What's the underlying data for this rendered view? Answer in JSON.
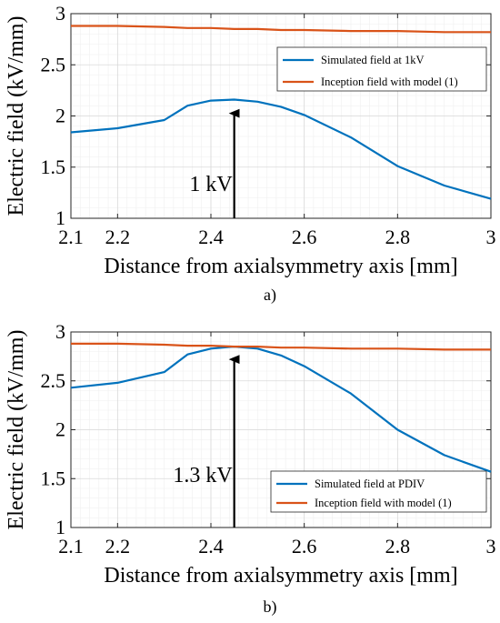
{
  "chart_data": [
    {
      "type": "line",
      "panel_label": "a)",
      "xlabel": "Distance from axialsymmetry axis [mm]",
      "ylabel": "Electric field (kV/mm)",
      "xlim": [
        2.1,
        3.0
      ],
      "ylim": [
        1,
        3
      ],
      "xticks": [
        2.1,
        2.2,
        2.4,
        2.6,
        2.8,
        3.0
      ],
      "xtick_labels": [
        "2.1",
        "2.2",
        "2.4",
        "2.6",
        "2.8",
        "3"
      ],
      "yticks": [
        1,
        1.5,
        2,
        2.5,
        3
      ],
      "ytick_labels": [
        "1",
        "1.5",
        "2",
        "2.5",
        "3"
      ],
      "grid": true,
      "legend_position": "top-right",
      "annotation": {
        "text": "1 kV",
        "arrow_x": 2.45,
        "arrow_y_from": 1.0,
        "arrow_y_to": 2.15
      },
      "series": [
        {
          "name": "Simulated field at 1kV",
          "color": "#0072BD",
          "x": [
            2.1,
            2.2,
            2.3,
            2.35,
            2.4,
            2.45,
            2.5,
            2.55,
            2.6,
            2.7,
            2.8,
            2.9,
            3.0
          ],
          "y": [
            1.84,
            1.88,
            1.96,
            2.1,
            2.15,
            2.16,
            2.14,
            2.09,
            2.01,
            1.79,
            1.51,
            1.32,
            1.19
          ]
        },
        {
          "name": "Inception field with model (1)",
          "color": "#D95319",
          "x": [
            2.1,
            2.2,
            2.3,
            2.35,
            2.4,
            2.45,
            2.5,
            2.55,
            2.6,
            2.7,
            2.8,
            2.9,
            3.0
          ],
          "y": [
            2.88,
            2.88,
            2.87,
            2.86,
            2.86,
            2.85,
            2.85,
            2.84,
            2.84,
            2.83,
            2.83,
            2.82,
            2.82
          ]
        }
      ]
    },
    {
      "type": "line",
      "panel_label": "b)",
      "xlabel": "Distance from axialsymmetry axis [mm]",
      "ylabel": "Electric field (kV/mm)",
      "xlim": [
        2.1,
        3.0
      ],
      "ylim": [
        1,
        3
      ],
      "xticks": [
        2.1,
        2.2,
        2.4,
        2.6,
        2.8,
        3.0
      ],
      "xtick_labels": [
        "2.1",
        "2.2",
        "2.4",
        "2.6",
        "2.8",
        "3"
      ],
      "yticks": [
        1,
        1.5,
        2,
        2.5,
        3
      ],
      "ytick_labels": [
        "1",
        "1.5",
        "2",
        "2.5",
        "3"
      ],
      "grid": true,
      "legend_position": "bottom-right",
      "annotation": {
        "text": "1.3 kV",
        "arrow_x": 2.45,
        "arrow_y_from": 1.0,
        "arrow_y_to": 2.85
      },
      "series": [
        {
          "name": "Simulated field at PDIV",
          "color": "#0072BD",
          "x": [
            2.1,
            2.2,
            2.3,
            2.35,
            2.4,
            2.45,
            2.5,
            2.55,
            2.6,
            2.7,
            2.8,
            2.9,
            3.0
          ],
          "y": [
            2.43,
            2.48,
            2.59,
            2.77,
            2.83,
            2.85,
            2.83,
            2.76,
            2.65,
            2.37,
            2.0,
            1.74,
            1.57
          ]
        },
        {
          "name": "Inception field with model (1)",
          "color": "#D95319",
          "x": [
            2.1,
            2.2,
            2.3,
            2.35,
            2.4,
            2.45,
            2.5,
            2.55,
            2.6,
            2.7,
            2.8,
            2.9,
            3.0
          ],
          "y": [
            2.88,
            2.88,
            2.87,
            2.86,
            2.86,
            2.85,
            2.85,
            2.84,
            2.84,
            2.83,
            2.83,
            2.82,
            2.82
          ]
        }
      ]
    }
  ]
}
